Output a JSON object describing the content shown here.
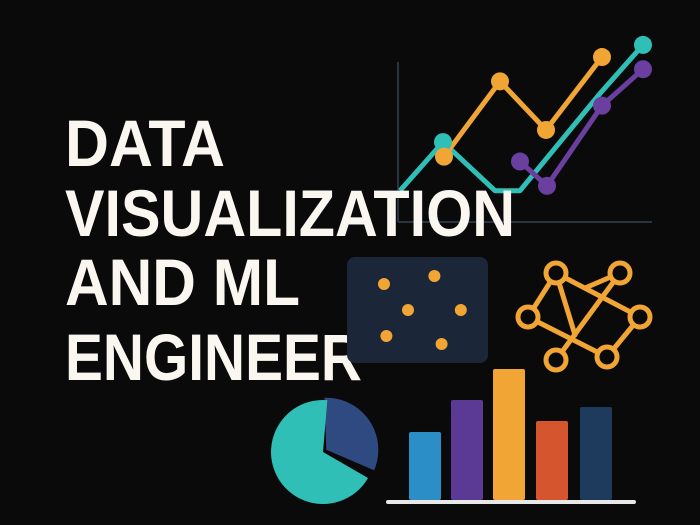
{
  "title": {
    "lines": [
      "DATA",
      "VISUALIZATION",
      "AND ML",
      "ENGINEER"
    ]
  },
  "colors": {
    "background": "#0b0a0b",
    "text": "#faf6f0",
    "teal": "#2fbfb6",
    "orange": "#f0a535",
    "purple": "#6a3fa0",
    "navy": "#2f4a80",
    "panel": "#1b2638",
    "axis": "#2a3340"
  },
  "icons": [
    "line-chart-icon",
    "scatter-plot-icon",
    "neural-network-icon",
    "pie-chart-icon",
    "bar-chart-icon"
  ],
  "line_chart": {
    "series": [
      {
        "color": "#2fbfb6",
        "values": [
          1,
          3,
          1,
          1,
          5,
          7
        ],
        "markers": [
          1,
          5
        ]
      },
      {
        "color": "#f0a535",
        "values": [
          2.4,
          5.5,
          3.5,
          6.5
        ],
        "markers": [
          0,
          1,
          2,
          3
        ]
      },
      {
        "color": "#6a3fa0",
        "values": [
          2.2,
          1.2,
          4.5,
          6
        ],
        "markers": [
          0,
          1,
          2,
          3
        ]
      }
    ]
  },
  "scatter": {
    "points": [
      [
        1,
        3.3
      ],
      [
        3.1,
        3.7
      ],
      [
        2,
        2
      ],
      [
        4.2,
        2
      ],
      [
        1.1,
        0.7
      ],
      [
        3.4,
        0.3
      ]
    ]
  },
  "pie": {
    "slices": [
      {
        "value": 68,
        "color": "#2fbfb6"
      },
      {
        "value": 32,
        "color": "#2f4a80"
      }
    ]
  },
  "bars": {
    "values": [
      68,
      100,
      131,
      79,
      93
    ],
    "colors": [
      "#2b8ec7",
      "#5a3a94",
      "#f0a535",
      "#d5552f",
      "#1e3a5c"
    ]
  }
}
